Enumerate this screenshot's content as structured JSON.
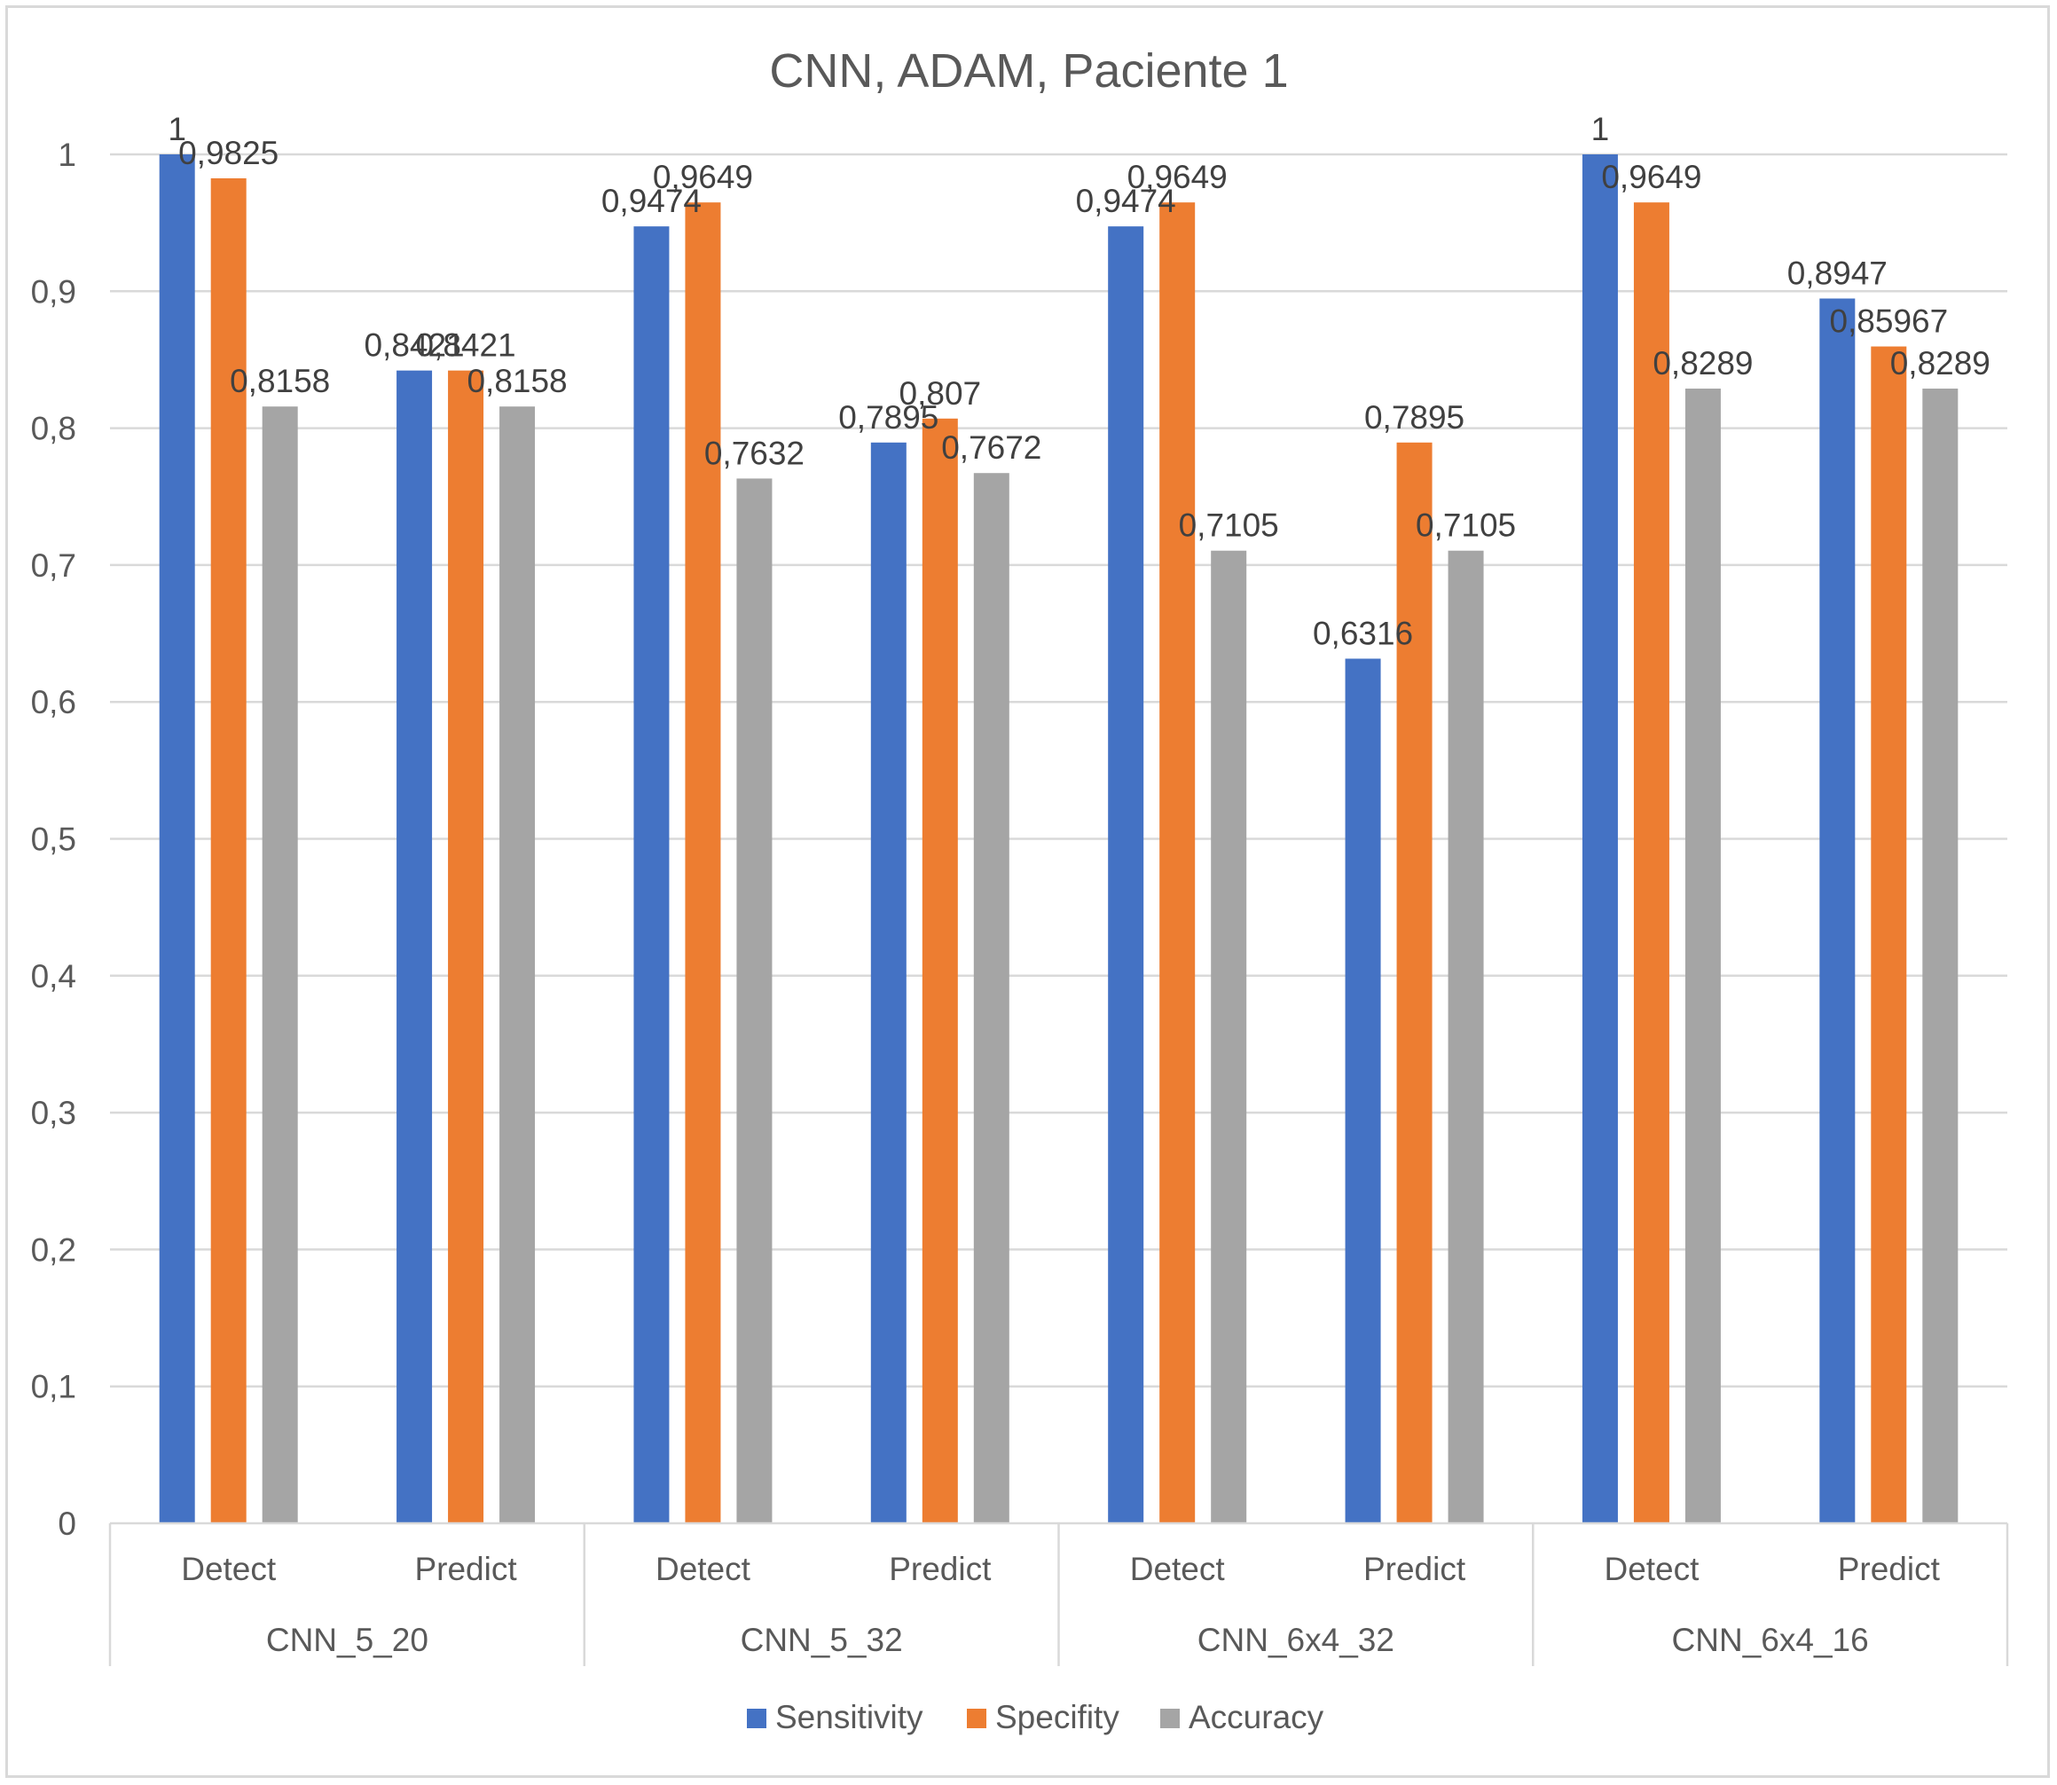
{
  "chart_data": {
    "type": "bar",
    "title": "CNN, ADAM, Paciente 1",
    "groups": [
      {
        "name": "CNN_5_20",
        "categories": [
          "Detect",
          "Predict"
        ]
      },
      {
        "name": "CNN_5_32",
        "categories": [
          "Detect",
          "Predict"
        ]
      },
      {
        "name": "CNN_6x4_32",
        "categories": [
          "Detect",
          "Predict"
        ]
      },
      {
        "name": "CNN_6x4_16",
        "categories": [
          "Detect",
          "Predict"
        ]
      }
    ],
    "series": [
      {
        "name": "Sensitivity",
        "color": "#4472c4",
        "values": [
          1,
          0.8421,
          0.9474,
          0.7895,
          0.9474,
          0.6316,
          1,
          0.8947
        ],
        "labels": [
          "1",
          "0,8421",
          "0,9474",
          "0,7895",
          "0,9474",
          "0,6316",
          "1",
          "0,8947"
        ]
      },
      {
        "name": "Specifity",
        "color": "#ed7d31",
        "values": [
          0.9825,
          0.8421,
          0.9649,
          0.807,
          0.9649,
          0.7895,
          0.9649,
          0.85967
        ],
        "labels": [
          "0,9825",
          "0,8421",
          "0,9649",
          "0,807",
          "0,9649",
          "0,7895",
          "0,9649",
          "0,85967"
        ]
      },
      {
        "name": "Accuracy",
        "color": "#a5a5a5",
        "values": [
          0.8158,
          0.8158,
          0.7632,
          0.7672,
          0.7105,
          0.7105,
          0.8289,
          0.8289
        ],
        "labels": [
          "0,8158",
          "0,8158",
          "0,7632",
          "0,7672",
          "0,7105",
          "0,7105",
          "0,8289",
          "0,8289"
        ]
      }
    ],
    "y_ticks": [
      "0",
      "0,1",
      "0,2",
      "0,3",
      "0,4",
      "0,5",
      "0,6",
      "0,7",
      "0,8",
      "0,9",
      "1"
    ],
    "ylim": [
      0,
      1
    ],
    "grid": true,
    "legend": "bottom"
  }
}
